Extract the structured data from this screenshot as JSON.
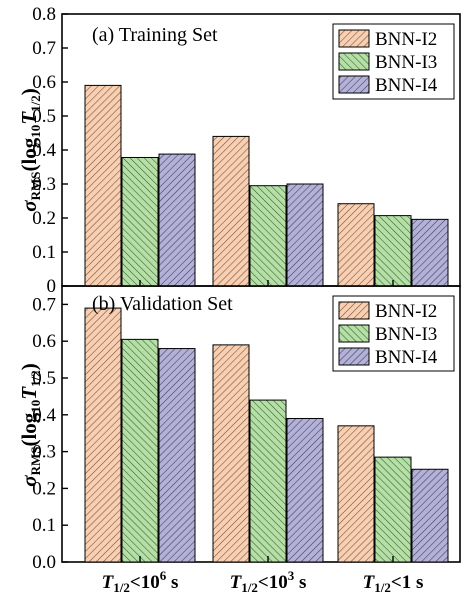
{
  "chart_data": [
    {
      "type": "bar",
      "title": "(a) Training Set",
      "ylabel_main": "σ",
      "ylabel_sub": "RMS",
      "ylabel_rest": "(log",
      "ylabel_log_sub": "10",
      "ylabel_T": "T",
      "ylabel_T_sub": "1/2",
      "ylabel_close": ")",
      "ylim": [
        0,
        0.8
      ],
      "yticks": [
        "0",
        "0.1",
        "0.2",
        "0.3",
        "0.4",
        "0.5",
        "0.6",
        "0.7",
        "0.8"
      ],
      "ytick_values": [
        0,
        0.1,
        0.2,
        0.3,
        0.4,
        0.5,
        0.6,
        0.7,
        0.8
      ],
      "legend_position": "top-right",
      "series": [
        {
          "name": "BNN-I2",
          "values": [
            0.59,
            0.44,
            0.242
          ]
        },
        {
          "name": "BNN-I3",
          "values": [
            0.378,
            0.295,
            0.207
          ]
        },
        {
          "name": "BNN-I4",
          "values": [
            0.388,
            0.3,
            0.196
          ]
        }
      ]
    },
    {
      "type": "bar",
      "title": "(b) Validation Set",
      "ylabel_main": "σ",
      "ylabel_sub": "RMS",
      "ylabel_rest": "(log",
      "ylabel_log_sub": "10",
      "ylabel_T": "T",
      "ylabel_T_sub": "1/2",
      "ylabel_close": ")",
      "ylim": [
        0,
        0.75
      ],
      "yticks": [
        "0.0",
        "0.1",
        "0.2",
        "0.3",
        "0.4",
        "0.5",
        "0.6",
        "0.7"
      ],
      "ytick_values": [
        0,
        0.1,
        0.2,
        0.3,
        0.4,
        0.5,
        0.6,
        0.7
      ],
      "legend_position": "top-right",
      "series": [
        {
          "name": "BNN-I2",
          "values": [
            0.69,
            0.59,
            0.37
          ]
        },
        {
          "name": "BNN-I3",
          "values": [
            0.605,
            0.44,
            0.285
          ]
        },
        {
          "name": "BNN-I4",
          "values": [
            0.58,
            0.39,
            0.252
          ]
        }
      ]
    }
  ],
  "categories": [
    {
      "T": "T",
      "sub": "1/2",
      "rest": "<10",
      "sup": "6",
      "unit": " s"
    },
    {
      "T": "T",
      "sub": "1/2",
      "rest": "<10",
      "sup": "3",
      "unit": " s"
    },
    {
      "T": "T",
      "sub": "1/2",
      "rest": "<1",
      "sup": "",
      "unit": " s"
    }
  ],
  "colors": {
    "BNN-I2": "#f7cfb2",
    "BNN-I3": "#b5dfa6",
    "BNN-I4": "#b4b1d6",
    "hatch_I2": "#7a4a30",
    "hatch_I3": "#2f5f2a",
    "hatch_I4": "#3b3766"
  }
}
